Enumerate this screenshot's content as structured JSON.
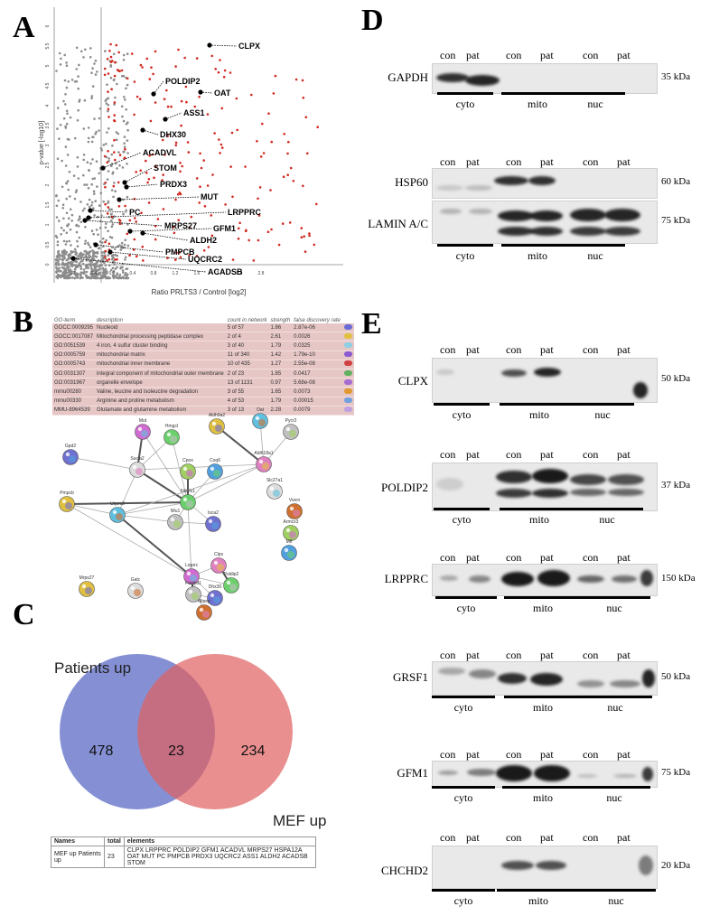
{
  "panels": {
    "a": "A",
    "b": "B",
    "c": "C",
    "d": "D",
    "e": "E"
  },
  "panelA": {
    "xlabel": "Ratio PRLTS3 / Control [log2]",
    "ylabel": "p-value [-log10]",
    "xticks": [
      "0.2",
      "0.4",
      "0.0",
      "0.4",
      "0.8",
      "1.2",
      "1.6",
      "2",
      "2.4",
      "2.8"
    ],
    "yticks": [
      "0",
      "0.5",
      "1",
      "1.5",
      "2",
      "2.5",
      "3",
      "3.5",
      "4",
      "4.5",
      "5",
      "5.5",
      "6"
    ],
    "labels": [
      "CLPX",
      "POLDIP2",
      "OAT",
      "ASS1",
      "DHX30",
      "ACADVL",
      "STOM",
      "PRDX3",
      "MUT",
      "PC",
      "LRPPRC",
      "MRPS27",
      "GFM1",
      "ALDH2",
      "PMPCB",
      "UQCRC2",
      "ACADSB"
    ],
    "colors": {
      "sig": "#d0281e",
      "nonsig": "#8c8c8c",
      "highlight": "#000000"
    }
  },
  "panelB": {
    "headers": [
      "GO-term",
      "description",
      "count in network",
      "strength",
      "false discovery rate"
    ],
    "rows": [
      [
        "GOCC:0009295",
        "Nucleoid",
        "5 of 57",
        "1.86",
        "2.87e-06"
      ],
      [
        "GOCC:0017087",
        "Mitochondrial processing peptidase complex",
        "2 of 4",
        "2.61",
        "0.0026"
      ],
      [
        "GO:0051539",
        "4 iron, 4 sulfur cluster binding",
        "3 of 40",
        "1.79",
        "0.0325"
      ],
      [
        "GO:0005759",
        "mitochondrial matrix",
        "11 of 340",
        "1.42",
        "1.79e-10"
      ],
      [
        "GO:0005743",
        "mitochondrial inner membrane",
        "10 of 435",
        "1.27",
        "2.55e-08"
      ],
      [
        "GO:0031307",
        "integral component of mitochondrial outer membrane",
        "2 of 23",
        "1.85",
        "0.0417"
      ],
      [
        "GO:0031967",
        "organelle envelope",
        "13 of 1131",
        "0.97",
        "5.68e-08"
      ],
      [
        "mmu00280",
        "Valine, leucine and isoleucine degradation",
        "3 of 55",
        "1.65",
        "0.0073"
      ],
      [
        "mmu00330",
        "Arginine and proline metabolism",
        "4 of 53",
        "1.79",
        "0.00015"
      ],
      [
        "MMU-8964539",
        "Glutamate and glutamine metabolism",
        "3 of 13",
        "2.28",
        "0.0079"
      ]
    ],
    "row_colors": [
      "#6b6bd6",
      "#e2c040",
      "#8ed0e6",
      "#8a5ad0",
      "#d04040",
      "#60b060",
      "#a56bd0",
      "#e09a30",
      "#70a0e0",
      "#c0a0e0"
    ],
    "nodes": [
      "Mut",
      "Hmgcl",
      "Aldh9a2",
      "Oat",
      "Pycr2",
      "Gpd2",
      "Sucla2",
      "Cpox",
      "Coq6",
      "Aldh18a1",
      "Slc27a1",
      "Ndufs1",
      "Pmpcb",
      "Uqcrc2",
      "Nfu1",
      "Isca2",
      "Vwcn",
      "Armcx3",
      "Mff",
      "Clpx",
      "Lrpprc",
      "Poldip2",
      "Mrps27",
      "Gatc",
      "Fastkd1",
      "Dhx30",
      "Mipep"
    ]
  },
  "panelC": {
    "set_left": "Patients up",
    "set_right": "MEF up",
    "left_only": "478",
    "overlap": "23",
    "right_only": "234",
    "colors": {
      "left": "#5c6bc6",
      "right": "#e06060"
    },
    "table": {
      "headers": [
        "Names",
        "total",
        "elements"
      ],
      "name": "MEF up Patients up",
      "total": "23",
      "elements_line1": "CLPX LRPPRC POLDIP2 GFM1 ACADVL MRPS27 HSPA12A",
      "elements_line2": "OAT MUT PC PMPCB PRDX3 UQCRC2 ASS1 ALDH2 ACADSB STOM"
    }
  },
  "panelD": {
    "blots": [
      {
        "name": "GAPDH",
        "kda": "35 kDa"
      },
      {
        "name": "HSP60",
        "kda": "60 kDa"
      },
      {
        "name": "LAMIN A/C",
        "kda": "75 kDa"
      }
    ],
    "lanes": [
      "con",
      "pat",
      "con",
      "pat",
      "con",
      "pat"
    ],
    "fractions": [
      "cyto",
      "mito",
      "nuc"
    ]
  },
  "panelE": {
    "blots": [
      {
        "name": "CLPX",
        "kda": "50 kDa"
      },
      {
        "name": "POLDIP2",
        "kda": "37 kDa"
      },
      {
        "name": "LRPPRC",
        "kda": "150 kDa"
      },
      {
        "name": "GRSF1",
        "kda": "50 kDa"
      },
      {
        "name": "GFM1",
        "kda": "75 kDa"
      },
      {
        "name": "CHCHD2",
        "kda": "20 kDa"
      }
    ],
    "lanes": [
      "con",
      "pat",
      "con",
      "pat",
      "con",
      "pat"
    ],
    "fractions": [
      "cyto",
      "mito",
      "nuc"
    ]
  }
}
